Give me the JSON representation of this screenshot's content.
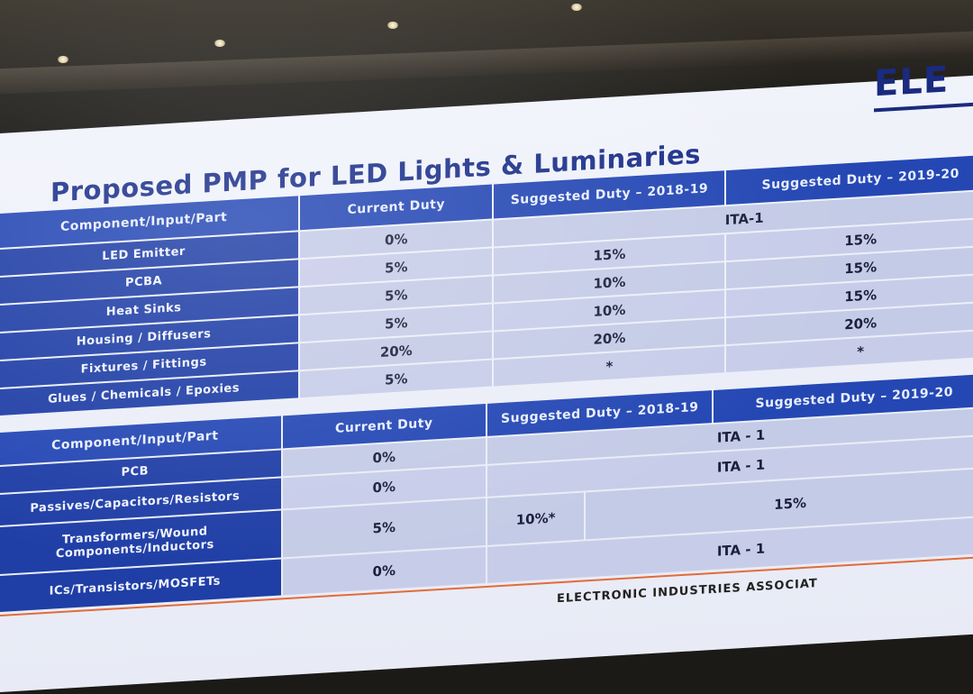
{
  "slide": {
    "title": "Proposed PMP for LED Lights & Luminaries",
    "logo_text": "ELE",
    "footer": "ELECTRONIC INDUSTRIES ASSOCIAT"
  },
  "table1": {
    "headers": [
      "Component/Input/Part",
      "Current Duty",
      "Suggested Duty – 2018-19",
      "Suggested Duty – 2019-20"
    ],
    "rows": [
      {
        "part": "LED Emitter",
        "current": "0%",
        "merged": "ITA-1"
      },
      {
        "part": "PCBA",
        "current": "5%",
        "d1819": "15%",
        "d1920": "15%"
      },
      {
        "part": "Heat Sinks",
        "current": "5%",
        "d1819": "10%",
        "d1920": "15%"
      },
      {
        "part": "Housing / Diffusers",
        "current": "5%",
        "d1819": "10%",
        "d1920": "15%"
      },
      {
        "part": "Fixtures / Fittings",
        "current": "20%",
        "d1819": "20%",
        "d1920": "20%"
      },
      {
        "part": "Glues / Chemicals / Epoxies",
        "current": "5%",
        "d1819": "*",
        "d1920": "*"
      }
    ]
  },
  "table2": {
    "headers": [
      "Component/Input/Part",
      "Current Duty",
      "Suggested Duty – 2018-19",
      "Suggested Duty – 2019-20"
    ],
    "rows": [
      {
        "part": "PCB",
        "current": "0%",
        "merged": "ITA - 1"
      },
      {
        "part": "Passives/Capacitors/Resistors",
        "current": "0%",
        "merged": "ITA - 1"
      },
      {
        "part": "Transformers/Wound Components/Inductors",
        "current": "5%",
        "d1819": "10%*",
        "d1920": "15%"
      },
      {
        "part": "ICs/Transistors/MOSFETs",
        "current": "0%",
        "merged": "ITA - 1"
      }
    ]
  },
  "colors": {
    "title": "#1b2f8a",
    "header_bg": "#2447b4",
    "label_bg": "#1f3ea6",
    "cell_dark": "#c4cbe6",
    "cell_light": "#dfe3f2",
    "divider": "#e36b3a"
  }
}
